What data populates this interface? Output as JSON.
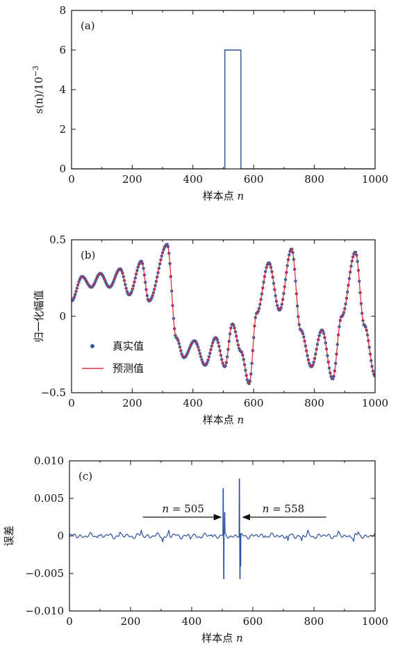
{
  "chart_data": [
    {
      "type": "line",
      "panel_label": "(a)",
      "xlabel_cn": "样本点",
      "xlabel_var": "n",
      "ylabel_text": "s(n)/10",
      "ylabel_exp": "−3",
      "xlim": [
        0,
        1000
      ],
      "ylim": [
        0,
        8
      ],
      "xticks": [
        0,
        200,
        400,
        600,
        800,
        1000
      ],
      "xtick_labels": [
        "0",
        "200",
        "400",
        "600",
        "800",
        "1000"
      ],
      "yticks": [
        0,
        2,
        4,
        6,
        8
      ],
      "ytick_labels": [
        "0",
        "2",
        "4",
        "6",
        "8"
      ],
      "color": "#2a4f9e",
      "series": [
        {
          "x": [
            0,
            505,
            505,
            558,
            558,
            1000
          ],
          "y": [
            0,
            0,
            6,
            6,
            0,
            0
          ]
        }
      ]
    },
    {
      "type": "line",
      "panel_label": "(b)",
      "xlabel_cn": "样本点",
      "xlabel_var": "n",
      "ylabel": "归一化幅值",
      "xlim": [
        0,
        1000
      ],
      "ylim": [
        -0.5,
        0.5
      ],
      "xticks": [
        0,
        200,
        400,
        600,
        800,
        1000
      ],
      "xtick_labels": [
        "0",
        "200",
        "400",
        "600",
        "800",
        "1000"
      ],
      "yticks": [
        -0.5,
        0,
        0.5
      ],
      "ytick_labels": [
        "−0.5",
        "0",
        "0.5"
      ],
      "legend": {
        "position": "lower-left",
        "entries": [
          {
            "label": "真实值",
            "marker": "dot",
            "color": "#2e5aa8"
          },
          {
            "label": "预测值",
            "marker": "line",
            "color": "#e0303a"
          }
        ]
      },
      "keypoints": {
        "x": [
          0,
          35,
          65,
          95,
          125,
          160,
          190,
          230,
          255,
          315,
          345,
          370,
          405,
          440,
          475,
          505,
          530,
          558,
          585,
          610,
          650,
          685,
          725,
          755,
          790,
          825,
          860,
          890,
          935,
          965,
          1000
        ],
        "y": [
          0.1,
          0.26,
          0.19,
          0.28,
          0.19,
          0.31,
          0.14,
          0.36,
          0.1,
          0.47,
          -0.14,
          -0.27,
          -0.16,
          -0.32,
          -0.14,
          -0.33,
          -0.05,
          -0.23,
          -0.44,
          0.02,
          0.35,
          0.04,
          0.44,
          -0.09,
          -0.33,
          -0.09,
          -0.41,
          0.0,
          0.42,
          -0.06,
          -0.39
        ]
      }
    },
    {
      "type": "line",
      "panel_label": "(c)",
      "xlabel_cn": "样本点",
      "xlabel_var": "n",
      "ylabel": "误差",
      "xlim": [
        0,
        1000
      ],
      "ylim": [
        -0.01,
        0.01
      ],
      "xticks": [
        0,
        200,
        400,
        600,
        800,
        1000
      ],
      "xtick_labels": [
        "0",
        "200",
        "400",
        "600",
        "800",
        "1000"
      ],
      "yticks": [
        -0.01,
        -0.005,
        0,
        0.005,
        0.01
      ],
      "ytick_labels": [
        "−0.010",
        "−0.005",
        "0",
        "0.005",
        "0.010"
      ],
      "color": "#2a4f9e",
      "annotations": [
        {
          "var": "n",
          "text": " = 505",
          "at_x": 505,
          "direction": "right"
        },
        {
          "var": "n",
          "text": " = 558",
          "at_x": 558,
          "direction": "left"
        }
      ],
      "spikes": [
        {
          "x": 503,
          "y": 0.0063
        },
        {
          "x": 505,
          "y": -0.0057
        },
        {
          "x": 508,
          "y": 0.0031
        },
        {
          "x": 556,
          "y": 0.0076
        },
        {
          "x": 558,
          "y": -0.0057
        },
        {
          "x": 560,
          "y": -0.004
        }
      ]
    }
  ]
}
